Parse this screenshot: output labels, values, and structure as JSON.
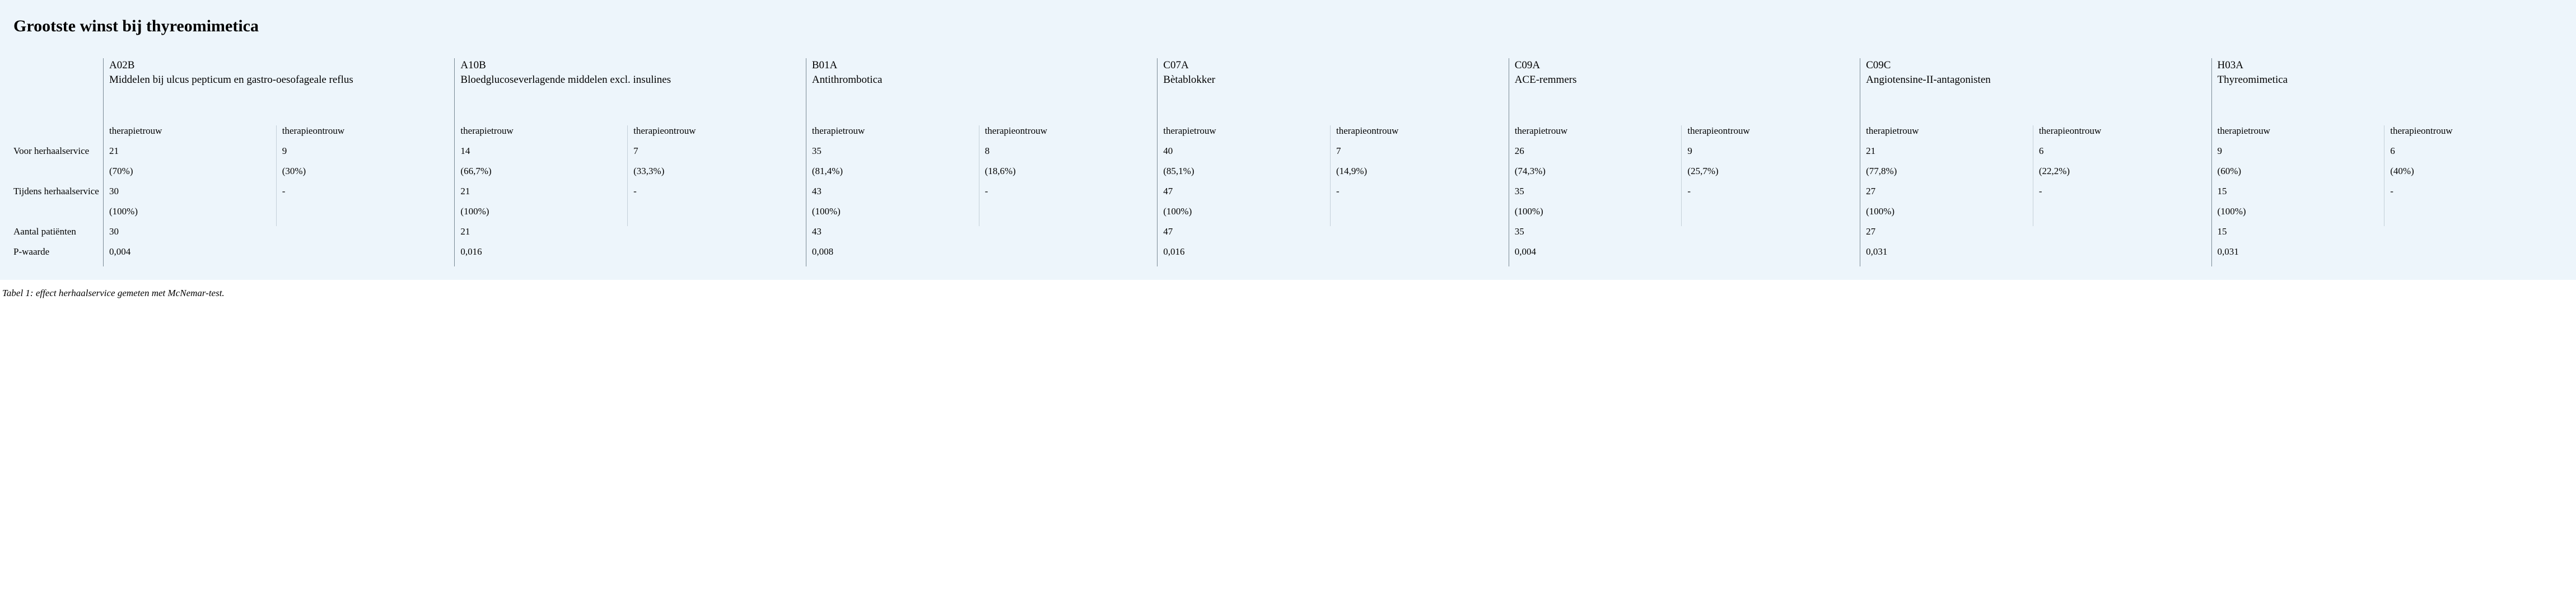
{
  "title": "Grootste winst bij thyreomimetica",
  "row_labels": {
    "voor": "Voor herhaalservice",
    "tijdens": "Tijdens herhaalservice",
    "aantal": "Aantal patiënten",
    "pwaarde": "P-waarde"
  },
  "sub_labels": {
    "trouw": "therapietrouw",
    "ontrouw": "therapieontrouw"
  },
  "groups": [
    {
      "code": "A02B",
      "desc": "Middelen bij ulcus pepticum en gastro-oesofageale reflus",
      "voor_trouw": "21",
      "voor_ontrouw": "9",
      "voor_trouw_pct": "(70%)",
      "voor_ontrouw_pct": "(30%)",
      "tijdens_trouw": "30",
      "tijdens_ontrouw": "-",
      "tijdens_trouw_pct": "(100%)",
      "tijdens_ontrouw_pct": "",
      "aantal": "30",
      "pwaarde": "0,004"
    },
    {
      "code": "A10B",
      "desc": "Bloedglucoseverlagende middelen excl. insulines",
      "voor_trouw": "14",
      "voor_ontrouw": "7",
      "voor_trouw_pct": "(66,7%)",
      "voor_ontrouw_pct": "(33,3%)",
      "tijdens_trouw": "21",
      "tijdens_ontrouw": "-",
      "tijdens_trouw_pct": "(100%)",
      "tijdens_ontrouw_pct": "",
      "aantal": "21",
      "pwaarde": "0,016"
    },
    {
      "code": "B01A",
      "desc": "Antithrombotica",
      "voor_trouw": "35",
      "voor_ontrouw": "8",
      "voor_trouw_pct": "(81,4%)",
      "voor_ontrouw_pct": "(18,6%)",
      "tijdens_trouw": "43",
      "tijdens_ontrouw": "-",
      "tijdens_trouw_pct": "(100%)",
      "tijdens_ontrouw_pct": "",
      "aantal": "43",
      "pwaarde": "0,008"
    },
    {
      "code": "C07A",
      "desc": "Bètablokker",
      "voor_trouw": "40",
      "voor_ontrouw": "7",
      "voor_trouw_pct": "(85,1%)",
      "voor_ontrouw_pct": "(14,9%)",
      "tijdens_trouw": "47",
      "tijdens_ontrouw": "-",
      "tijdens_trouw_pct": "(100%)",
      "tijdens_ontrouw_pct": "",
      "aantal": "47",
      "pwaarde": "0,016"
    },
    {
      "code": "C09A",
      "desc": "ACE-remmers",
      "voor_trouw": "26",
      "voor_ontrouw": "9",
      "voor_trouw_pct": "(74,3%)",
      "voor_ontrouw_pct": "(25,7%)",
      "tijdens_trouw": "35",
      "tijdens_ontrouw": "-",
      "tijdens_trouw_pct": "(100%)",
      "tijdens_ontrouw_pct": "",
      "aantal": "35",
      "pwaarde": "0,004"
    },
    {
      "code": "C09C",
      "desc": "Angiotensine-II-antagonisten",
      "voor_trouw": "21",
      "voor_ontrouw": "6",
      "voor_trouw_pct": "(77,8%)",
      "voor_ontrouw_pct": "(22,2%)",
      "tijdens_trouw": "27",
      "tijdens_ontrouw": "-",
      "tijdens_trouw_pct": "(100%)",
      "tijdens_ontrouw_pct": "",
      "aantal": "27",
      "pwaarde": "0,031"
    },
    {
      "code": "H03A",
      "desc": "Thyreomimetica",
      "voor_trouw": "9",
      "voor_ontrouw": "6",
      "voor_trouw_pct": "(60%)",
      "voor_ontrouw_pct": "(40%)",
      "tijdens_trouw": "15",
      "tijdens_ontrouw": "-",
      "tijdens_trouw_pct": "(100%)",
      "tijdens_ontrouw_pct": "",
      "aantal": "15",
      "pwaarde": "0,031"
    }
  ],
  "caption": "Tabel 1: effect herhaalservice gemeten met McNemar-test.",
  "colors": {
    "panel_bg": "#edf5fb",
    "border_main": "#7a8a95",
    "border_sub": "#c4d0d9",
    "text": "#000000"
  }
}
